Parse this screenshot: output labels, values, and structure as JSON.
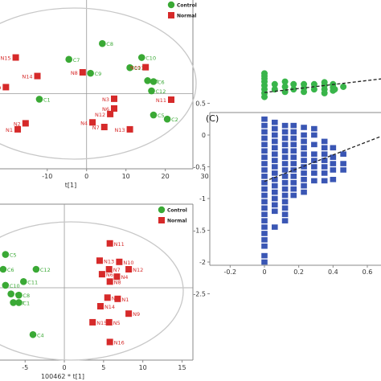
{
  "colors": {
    "control": "#3aa935",
    "normal": "#d62a2a",
    "perm_r2": "#39b54a",
    "perm_q2": "#3a56b4",
    "ellipse": "#c8c8c8",
    "axis": "#888888"
  },
  "legend": {
    "control": "Control",
    "normal": "Normal"
  },
  "chart_data": [
    {
      "type": "scatter",
      "panel": "top-left",
      "title": "",
      "xlabel": "t[1]",
      "ylabel": "",
      "x_ticks": [
        "-10",
        "0",
        "10",
        "20",
        "30"
      ],
      "xlim": [
        -22,
        36
      ],
      "ylim": [
        -15,
        15
      ],
      "grid": false,
      "legend_placement": "top-right",
      "series": [
        {
          "name": "Control",
          "marker": "circle",
          "points": [
            {
              "label": "C8",
              "x": 4,
              "y": 10.8
            },
            {
              "label": "C7",
              "x": -4.5,
              "y": 7.4
            },
            {
              "label": "C10",
              "x": 14,
              "y": 7.8
            },
            {
              "label": "C11",
              "x": 11,
              "y": 5.6
            },
            {
              "label": "C9",
              "x": 1,
              "y": 4.4
            },
            {
              "label": "C3",
              "x": 15.5,
              "y": 2.8
            },
            {
              "label": "C6",
              "x": 17,
              "y": 2.6
            },
            {
              "label": "C12",
              "x": 16.5,
              "y": 0.6
            },
            {
              "label": "C1",
              "x": -12,
              "y": -1.2
            },
            {
              "label": "C5",
              "x": 17,
              "y": -4.6
            },
            {
              "label": "C2",
              "x": 20.5,
              "y": -5.5
            }
          ]
        },
        {
          "name": "Normal",
          "marker": "square",
          "points": [
            {
              "label": "N15",
              "x": -18,
              "y": 7.8
            },
            {
              "label": "N8",
              "x": -1,
              "y": 4.6
            },
            {
              "label": "N10",
              "x": 15,
              "y": 5.7
            },
            {
              "label": "N14",
              "x": -12.5,
              "y": 3.8
            },
            {
              "label": "N9",
              "x": -20.5,
              "y": 1.4
            },
            {
              "label": "N3",
              "x": 7,
              "y": -1.1
            },
            {
              "label": "N11",
              "x": 21.5,
              "y": -1.3
            },
            {
              "label": "N6",
              "x": 7,
              "y": -3.2
            },
            {
              "label": "N12",
              "x": 6,
              "y": -4.4
            },
            {
              "label": "N4",
              "x": 1.5,
              "y": -6.2
            },
            {
              "label": "N2",
              "x": -15.5,
              "y": -6.4
            },
            {
              "label": "N7",
              "x": 4.5,
              "y": -7.2
            },
            {
              "label": "N1",
              "x": -17.5,
              "y": -7.7
            },
            {
              "label": "N13",
              "x": 11,
              "y": -7.7
            }
          ]
        }
      ]
    },
    {
      "type": "scatter",
      "panel": "bottom-left",
      "title": "",
      "xlabel": "100462 * t[1]",
      "ylabel": "",
      "x_ticks": [
        "-5",
        "0",
        "5",
        "10",
        "15"
      ],
      "xlim": [
        -8.2,
        17
      ],
      "ylim": [
        -12,
        12
      ],
      "grid": false,
      "legend_placement": "top-right",
      "series": [
        {
          "name": "Control",
          "marker": "circle",
          "points": [
            {
              "label": "C5",
              "x": -7.5,
              "y": 5.4
            },
            {
              "label": "C6",
              "x": -7.8,
              "y": 3.0
            },
            {
              "label": "C12",
              "x": -3.6,
              "y": 3.0
            },
            {
              "label": "C11",
              "x": -5.2,
              "y": 1.0
            },
            {
              "label": "C10",
              "x": -7.5,
              "y": 0.4
            },
            {
              "label": "C9",
              "x": -6.8,
              "y": -1.0
            },
            {
              "label": "C8",
              "x": -5.8,
              "y": -1.2
            },
            {
              "label": "C7",
              "x": -6.5,
              "y": -2.4
            },
            {
              "label": "C1",
              "x": -5.8,
              "y": -2.4
            },
            {
              "label": "C4",
              "x": -4.0,
              "y": -7.6
            }
          ]
        },
        {
          "name": "Normal",
          "marker": "square",
          "points": [
            {
              "label": "N11",
              "x": 5.8,
              "y": 7.2
            },
            {
              "label": "N10",
              "x": 7.0,
              "y": 4.2
            },
            {
              "label": "N13",
              "x": 4.5,
              "y": 4.4
            },
            {
              "label": "N12",
              "x": 8.2,
              "y": 3.0
            },
            {
              "label": "N7",
              "x": 5.7,
              "y": 3.0
            },
            {
              "label": "N6",
              "x": 4.8,
              "y": 2.2
            },
            {
              "label": "N4",
              "x": 6.7,
              "y": 1.8
            },
            {
              "label": "N8",
              "x": 5.8,
              "y": 1.0
            },
            {
              "label": "N2",
              "x": 5.5,
              "y": -1.6
            },
            {
              "label": "N1",
              "x": 6.8,
              "y": -1.8
            },
            {
              "label": "N14",
              "x": 4.6,
              "y": -3.0
            },
            {
              "label": "N9",
              "x": 8.2,
              "y": -4.2
            },
            {
              "label": "N15",
              "x": 3.6,
              "y": -5.6
            },
            {
              "label": "N5",
              "x": 5.7,
              "y": -5.6
            },
            {
              "label": "N16",
              "x": 5.8,
              "y": -8.8
            }
          ]
        }
      ]
    },
    {
      "type": "scatter",
      "panel": "C",
      "panel_label": "(C)",
      "title": "",
      "xlabel": "",
      "ylabel": "",
      "x_ticks": [
        "-0.2",
        "0",
        "0.2",
        "0.4",
        "0.6"
      ],
      "y_ticks": [
        "0.5",
        "0",
        "-0.5",
        "-1",
        "-1.5",
        "-2",
        "-2.5"
      ],
      "xlim": [
        -0.28,
        0.72
      ],
      "ylim": [
        -2.7,
        1.05
      ],
      "grid": false,
      "legend_placement": "none",
      "series": [
        {
          "marker": "circle",
          "color_key": "perm_r2",
          "x": [
            0,
            0,
            0,
            0,
            0,
            0,
            0,
            0,
            0.06,
            0.06,
            0.12,
            0.12,
            0.12,
            0.17,
            0.17,
            0.23,
            0.23,
            0.23,
            0.29,
            0.29,
            0.35,
            0.35,
            0.35,
            0.35,
            0.4,
            0.4,
            0.4,
            0.41,
            0.46
          ],
          "y": [
            0.6,
            0.66,
            0.72,
            0.78,
            0.84,
            0.89,
            0.93,
            0.97,
            0.72,
            0.8,
            0.68,
            0.76,
            0.84,
            0.72,
            0.8,
            0.68,
            0.74,
            0.8,
            0.72,
            0.8,
            0.66,
            0.72,
            0.78,
            0.83,
            0.7,
            0.75,
            0.8,
            0.72,
            0.76
          ]
        },
        {
          "marker": "square",
          "color_key": "perm_q2",
          "x": [
            0,
            0,
            0,
            0,
            0,
            0,
            0,
            0,
            0,
            0,
            0,
            0,
            0,
            0,
            0,
            0,
            0,
            0,
            0,
            0,
            0,
            0,
            0,
            0.06,
            0.06,
            0.06,
            0.06,
            0.06,
            0.06,
            0.06,
            0.06,
            0.06,
            0.06,
            0.06,
            0.06,
            0.06,
            0.06,
            0.06,
            0.06,
            0.12,
            0.12,
            0.12,
            0.12,
            0.12,
            0.12,
            0.12,
            0.12,
            0.12,
            0.12,
            0.12,
            0.12,
            0.12,
            0.12,
            0.12,
            0.12,
            0.17,
            0.17,
            0.17,
            0.17,
            0.17,
            0.17,
            0.17,
            0.17,
            0.17,
            0.17,
            0.17,
            0.17,
            0.23,
            0.23,
            0.23,
            0.23,
            0.23,
            0.23,
            0.23,
            0.23,
            0.23,
            0.23,
            0.23,
            0.29,
            0.29,
            0.29,
            0.29,
            0.29,
            0.29,
            0.29,
            0.29,
            0.35,
            0.35,
            0.35,
            0.35,
            0.35,
            0.35,
            0.35,
            0.4,
            0.4,
            0.4,
            0.4,
            0.4,
            0.46,
            0.46,
            0.46
          ],
          "y": [
            0.25,
            0.15,
            0.05,
            -0.05,
            -0.15,
            -0.25,
            -0.35,
            -0.45,
            -0.55,
            -0.65,
            -0.75,
            -0.85,
            -0.95,
            -1.05,
            -1.15,
            -1.25,
            -1.35,
            -1.45,
            -1.55,
            -1.65,
            -1.75,
            -1.9,
            -2.0,
            0.2,
            0.1,
            0.0,
            -0.1,
            -0.2,
            -0.3,
            -0.4,
            -0.5,
            -0.6,
            -0.7,
            -0.8,
            -0.9,
            -1.0,
            -1.1,
            -1.2,
            -1.45,
            0.15,
            0.05,
            -0.05,
            -0.15,
            -0.25,
            -0.35,
            -0.45,
            -0.55,
            -0.65,
            -0.75,
            -0.85,
            -0.95,
            -1.05,
            -1.15,
            -1.25,
            -1.35,
            0.15,
            0.05,
            -0.05,
            -0.15,
            -0.25,
            -0.35,
            -0.45,
            -0.55,
            -0.65,
            -0.75,
            -0.85,
            -0.95,
            0.12,
            0.0,
            -0.1,
            -0.2,
            -0.3,
            -0.4,
            -0.5,
            -0.6,
            -0.7,
            -0.8,
            -0.9,
            0.1,
            0.0,
            -0.15,
            -0.3,
            -0.4,
            -0.5,
            -0.6,
            -0.72,
            -0.1,
            -0.2,
            -0.3,
            -0.4,
            -0.5,
            -0.6,
            -0.72,
            -0.2,
            -0.35,
            -0.45,
            -0.55,
            -0.7,
            -0.3,
            -0.45,
            -0.55
          ]
        }
      ],
      "regression_lines": [
        {
          "color_key": "perm_r2",
          "from": [
            0,
            0.67
          ],
          "to": [
            0.7,
            0.89
          ]
        },
        {
          "color_key": "perm_q2",
          "from": [
            0,
            -0.73
          ],
          "to": [
            0.7,
            0.0
          ]
        }
      ]
    }
  ]
}
